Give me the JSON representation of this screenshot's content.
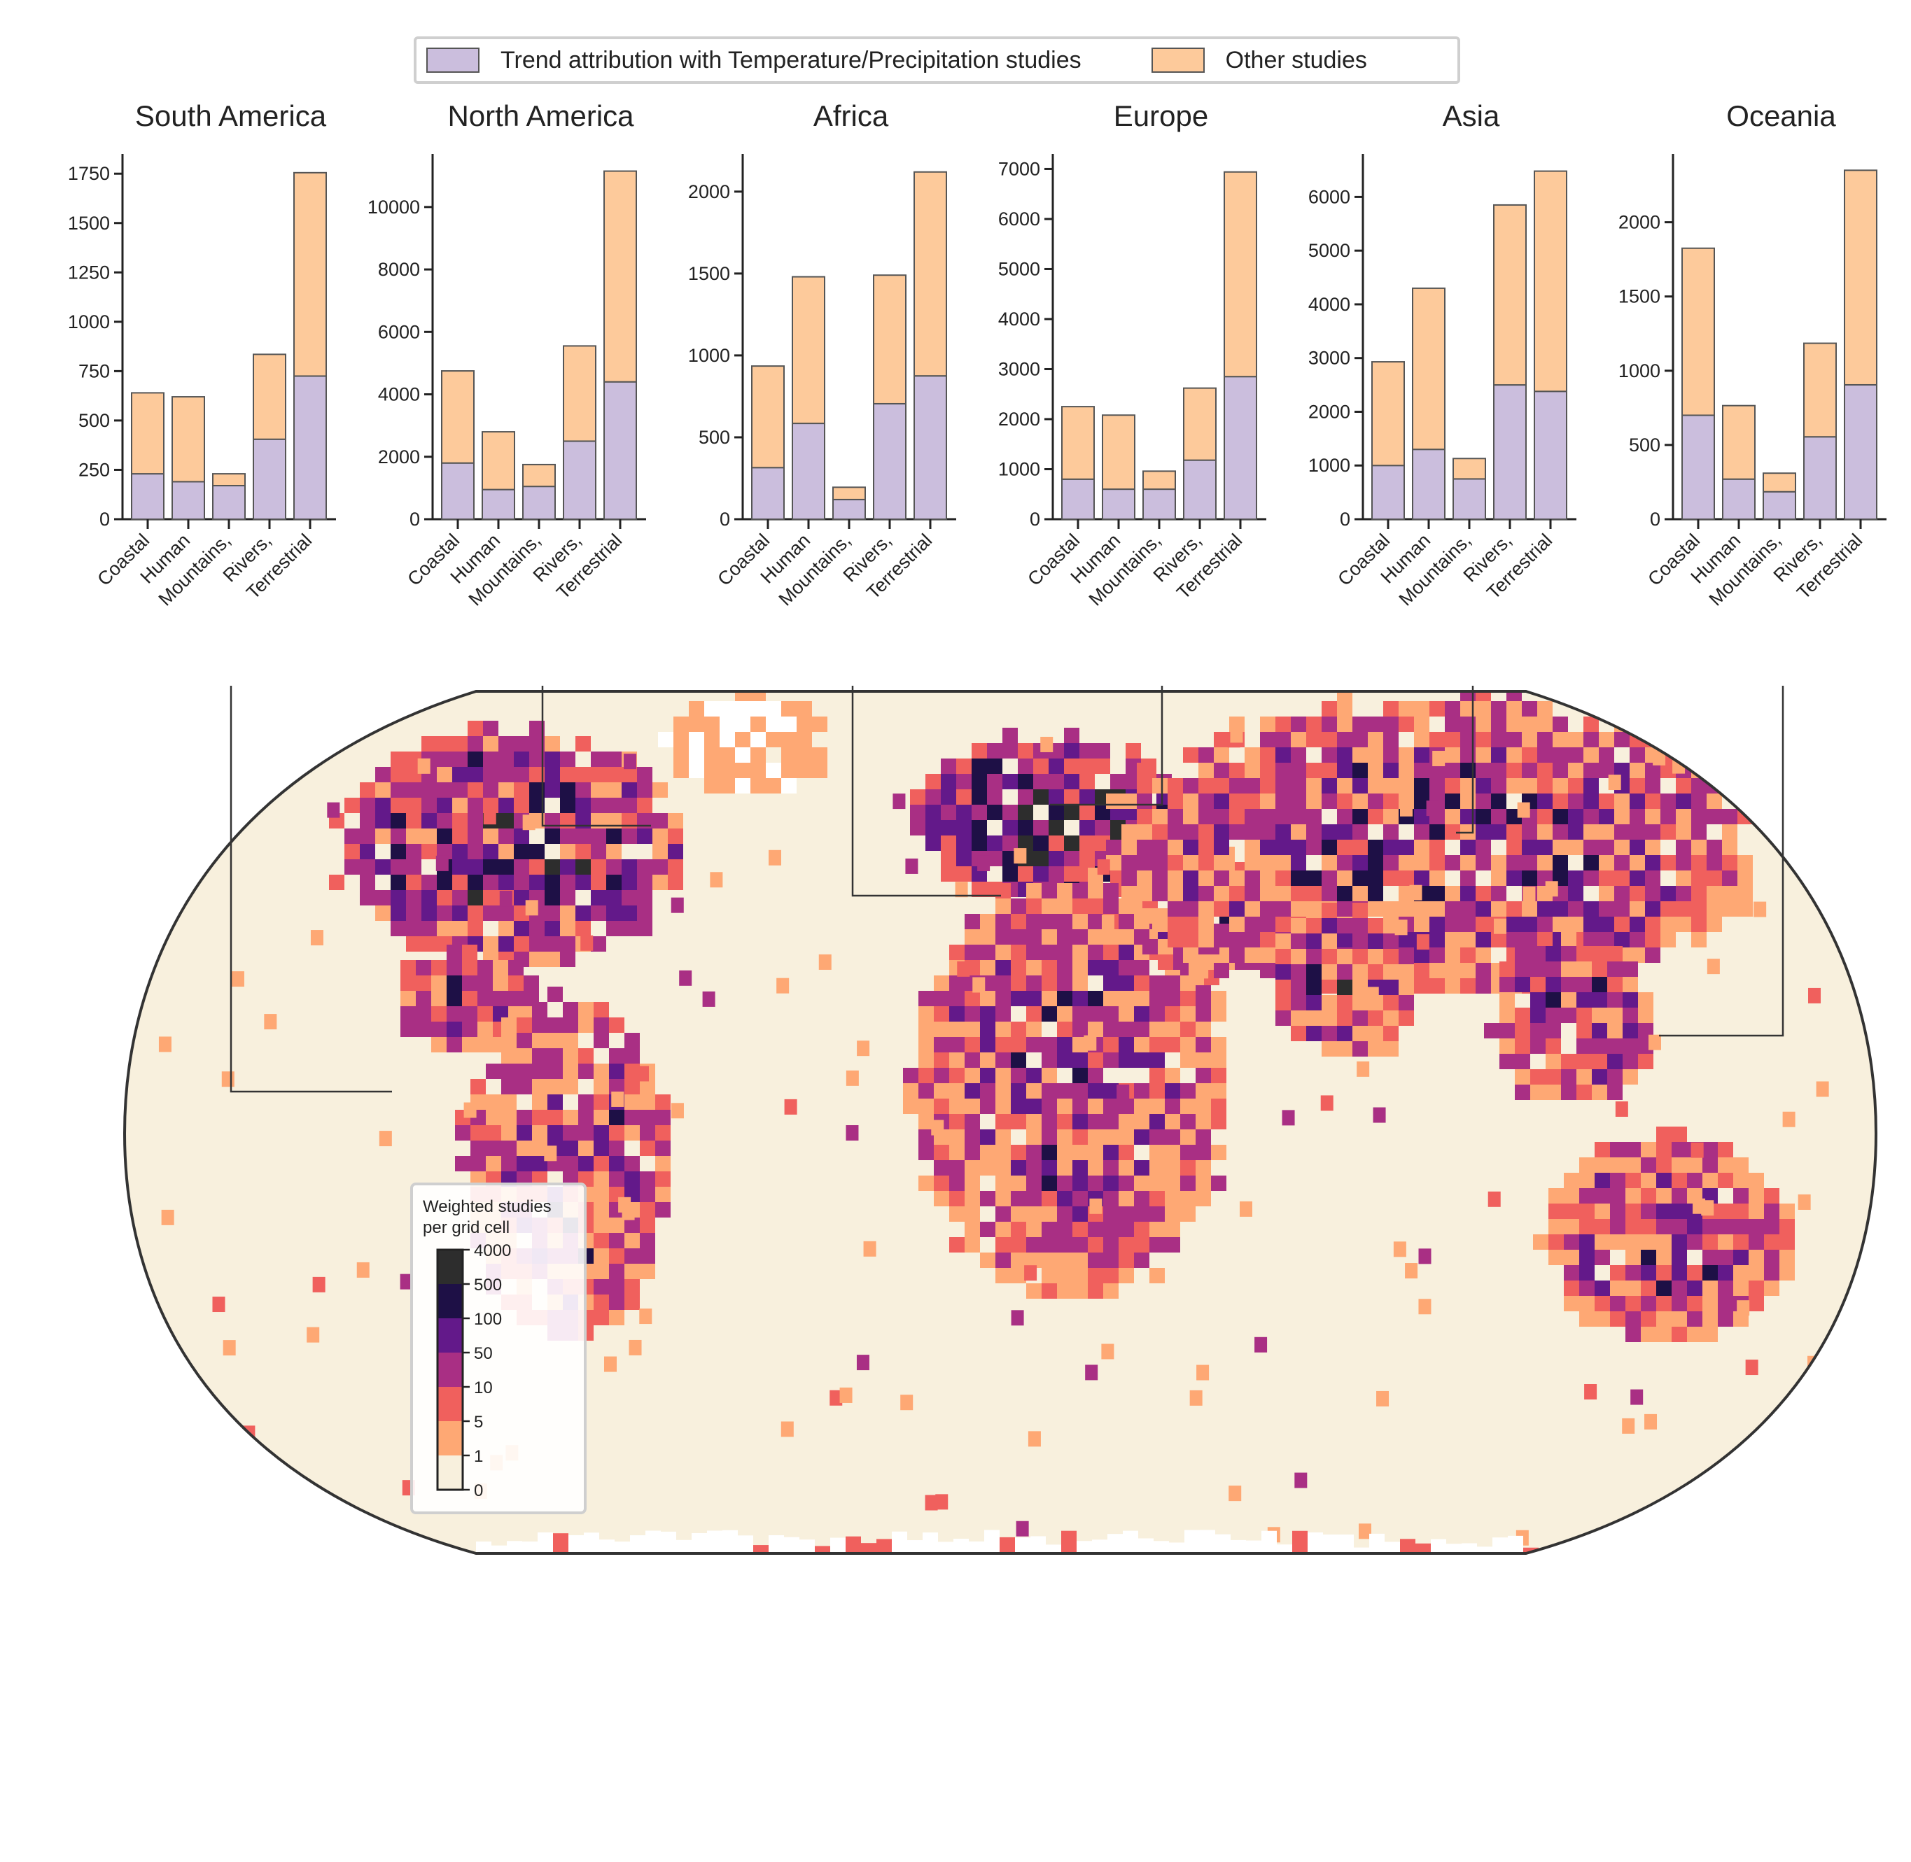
{
  "legend": {
    "trend_label": "Trend attribution with Temperature/Precipitation studies",
    "other_label": "Other studies"
  },
  "colors": {
    "trend": "#cbbedd",
    "other": "#fdca9b",
    "bar_edge": "#555555",
    "ocean": "#f8f0dd",
    "map_outline": "#333333"
  },
  "chart_data": [
    {
      "type": "bar",
      "title": "South America",
      "categories": [
        "Coastal",
        "Human",
        "Mountains,",
        "Rivers,",
        "Terrestrial"
      ],
      "series": [
        {
          "name": "Trend attribution with Temperature/Precipitation studies",
          "values": [
            230,
            190,
            170,
            405,
            725
          ]
        },
        {
          "name": "Other studies",
          "values": [
            410,
            430,
            60,
            430,
            1030
          ]
        }
      ],
      "yticks": [
        0,
        250,
        500,
        750,
        1000,
        1250,
        1500,
        1750
      ],
      "ylim": [
        0,
        1850
      ]
    },
    {
      "type": "bar",
      "title": "North America",
      "categories": [
        "Coastal",
        "Human",
        "Mountains,",
        "Rivers,",
        "Terrestrial"
      ],
      "series": [
        {
          "name": "Trend attribution with Temperature/Precipitation studies",
          "values": [
            1800,
            950,
            1050,
            2500,
            4400
          ]
        },
        {
          "name": "Other studies",
          "values": [
            2950,
            1850,
            700,
            3050,
            6750
          ]
        }
      ],
      "yticks": [
        0,
        2000,
        4000,
        6000,
        8000,
        10000
      ],
      "ylim": [
        0,
        11700
      ]
    },
    {
      "type": "bar",
      "title": "Africa",
      "categories": [
        "Coastal",
        "Human",
        "Mountains,",
        "Rivers,",
        "Terrestrial"
      ],
      "series": [
        {
          "name": "Trend attribution with Temperature/Precipitation studies",
          "values": [
            315,
            585,
            120,
            705,
            875
          ]
        },
        {
          "name": "Other studies",
          "values": [
            620,
            895,
            75,
            785,
            1245
          ]
        }
      ],
      "yticks": [
        0,
        500,
        1000,
        1500,
        2000
      ],
      "ylim": [
        0,
        2230
      ]
    },
    {
      "type": "bar",
      "title": "Europe",
      "categories": [
        "Coastal",
        "Human",
        "Mountains,",
        "Rivers,",
        "Terrestrial"
      ],
      "series": [
        {
          "name": "Trend attribution with Temperature/Precipitation studies",
          "values": [
            800,
            600,
            600,
            1180,
            2850
          ]
        },
        {
          "name": "Other studies",
          "values": [
            1450,
            1480,
            360,
            1440,
            4090
          ]
        }
      ],
      "yticks": [
        0,
        1000,
        2000,
        3000,
        4000,
        5000,
        6000,
        7000
      ],
      "ylim": [
        0,
        7300
      ]
    },
    {
      "type": "bar",
      "title": "Asia",
      "categories": [
        "Coastal",
        "Human",
        "Mountains,",
        "Rivers,",
        "Terrestrial"
      ],
      "series": [
        {
          "name": "Trend attribution with Temperature/Precipitation studies",
          "values": [
            1000,
            1300,
            750,
            2500,
            2380
          ]
        },
        {
          "name": "Other studies",
          "values": [
            1930,
            3000,
            380,
            3350,
            4100
          ]
        }
      ],
      "yticks": [
        0,
        1000,
        2000,
        3000,
        4000,
        5000,
        6000
      ],
      "ylim": [
        0,
        6800
      ]
    },
    {
      "type": "bar",
      "title": "Oceania",
      "categories": [
        "Coastal",
        "Human",
        "Mountains,",
        "Rivers,",
        "Terrestrial"
      ],
      "series": [
        {
          "name": "Trend attribution with Temperature/Precipitation studies",
          "values": [
            700,
            270,
            185,
            555,
            905
          ]
        },
        {
          "name": "Other studies",
          "values": [
            1125,
            495,
            125,
            630,
            1445
          ]
        }
      ],
      "yticks": [
        0,
        500,
        1000,
        1500,
        2000
      ],
      "ylim": [
        0,
        2460
      ]
    }
  ],
  "map": {
    "colorbar_title_line1": "Weighted studies",
    "colorbar_title_line2": "per grid cell",
    "colorbar": [
      {
        "label": "4000",
        "color": "#2d2d2d"
      },
      {
        "label": "500",
        "color": "#1e1046"
      },
      {
        "label": "100",
        "color": "#63198a"
      },
      {
        "label": "50",
        "color": "#a92f84"
      },
      {
        "label": "10",
        "color": "#f0605d"
      },
      {
        "label": "5",
        "color": "#fea874"
      },
      {
        "label": "1",
        "color": "#f8f0dd"
      },
      {
        "label": "0",
        "color": "#f8f0dd"
      }
    ]
  }
}
